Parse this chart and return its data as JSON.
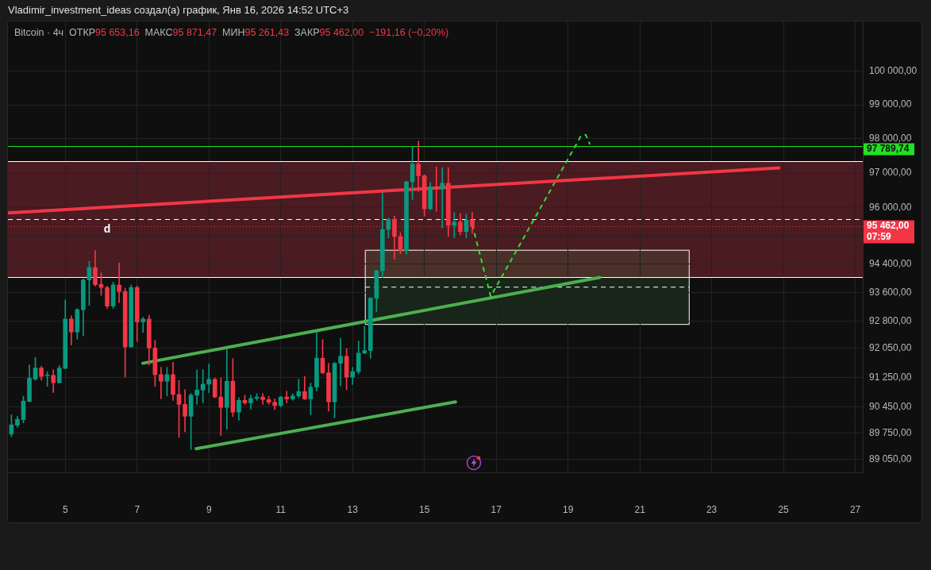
{
  "chart_data": {
    "type": "candlestick",
    "title": "Vladimir_investment_ideas создал(а) график, Янв 16, 2026 14:52 UTC+3",
    "subtitle": "Bitcoin · 4ч  ОТКР95 653,16  МАКС95 871,47  МИН95 261,43  ЗАКР95 462,00  −191,16 (−0,20%)",
    "x": [
      "2026-01-03T12:00",
      "2026-01-03T16:00",
      "2026-01-03T20:00",
      "2026-01-04T00:00",
      "2026-01-04T04:00",
      "2026-01-04T08:00",
      "2026-01-04T12:00",
      "2026-01-04T16:00",
      "2026-01-04T20:00",
      "2026-01-05T00:00",
      "2026-01-05T04:00",
      "2026-01-05T08:00",
      "2026-01-05T12:00",
      "2026-01-05T16:00",
      "2026-01-05T20:00",
      "2026-01-06T00:00",
      "2026-01-06T04:00",
      "2026-01-06T08:00",
      "2026-01-06T12:00",
      "2026-01-06T16:00",
      "2026-01-06T20:00",
      "2026-01-07T00:00",
      "2026-01-07T04:00",
      "2026-01-07T08:00",
      "2026-01-07T12:00",
      "2026-01-07T16:00",
      "2026-01-07T20:00",
      "2026-01-08T00:00",
      "2026-01-08T04:00",
      "2026-01-08T08:00",
      "2026-01-08T12:00",
      "2026-01-08T16:00",
      "2026-01-08T20:00",
      "2026-01-09T00:00",
      "2026-01-09T04:00",
      "2026-01-09T08:00",
      "2026-01-09T12:00",
      "2026-01-09T16:00",
      "2026-01-09T20:00",
      "2026-01-10T00:00",
      "2026-01-10T04:00",
      "2026-01-10T08:00",
      "2026-01-10T12:00",
      "2026-01-10T16:00",
      "2026-01-10T20:00",
      "2026-01-11T00:00",
      "2026-01-11T04:00",
      "2026-01-11T08:00",
      "2026-01-11T12:00",
      "2026-01-11T16:00",
      "2026-01-11T20:00",
      "2026-01-12T00:00",
      "2026-01-12T04:00",
      "2026-01-12T08:00",
      "2026-01-12T12:00",
      "2026-01-12T16:00",
      "2026-01-12T20:00",
      "2026-01-13T00:00",
      "2026-01-13T04:00",
      "2026-01-13T08:00",
      "2026-01-13T12:00",
      "2026-01-13T16:00",
      "2026-01-13T20:00",
      "2026-01-14T00:00",
      "2026-01-14T04:00",
      "2026-01-14T08:00",
      "2026-01-14T12:00",
      "2026-01-14T16:00",
      "2026-01-14T20:00",
      "2026-01-15T00:00",
      "2026-01-15T04:00",
      "2026-01-15T08:00",
      "2026-01-15T12:00",
      "2026-01-15T16:00",
      "2026-01-15T20:00",
      "2026-01-16T00:00",
      "2026-01-16T04:00",
      "2026-01-16T08:00"
    ],
    "ohlc": [
      [
        89720,
        90240,
        89650,
        89970
      ],
      [
        89960,
        90200,
        89900,
        90120
      ],
      [
        90110,
        90740,
        90020,
        90610
      ],
      [
        90600,
        91590,
        90590,
        91230
      ],
      [
        91210,
        91800,
        91170,
        91510
      ],
      [
        91510,
        91560,
        91180,
        91280
      ],
      [
        91300,
        91410,
        91010,
        91320
      ],
      [
        91310,
        91460,
        90840,
        91110
      ],
      [
        91110,
        91580,
        91100,
        91510
      ],
      [
        91500,
        93390,
        91490,
        92860
      ],
      [
        92860,
        92950,
        92140,
        92500
      ],
      [
        92500,
        93150,
        92300,
        93120
      ],
      [
        93120,
        93980,
        92400,
        93950
      ],
      [
        93950,
        94480,
        93240,
        94300
      ],
      [
        94300,
        94780,
        93780,
        93820
      ],
      [
        93830,
        94150,
        93520,
        93740
      ],
      [
        93740,
        93780,
        93150,
        93220
      ],
      [
        93220,
        93890,
        93150,
        93810
      ],
      [
        93810,
        94430,
        93320,
        93630
      ],
      [
        93630,
        93720,
        91260,
        92090
      ],
      [
        92090,
        93810,
        92080,
        93740
      ],
      [
        93740,
        93780,
        92240,
        92780
      ],
      [
        92780,
        92910,
        92490,
        92860
      ],
      [
        92860,
        92960,
        91590,
        92060
      ],
      [
        92060,
        92270,
        91010,
        91330
      ],
      [
        91330,
        91530,
        90670,
        91150
      ],
      [
        91150,
        91530,
        90750,
        91330
      ],
      [
        91330,
        91670,
        90630,
        90790
      ],
      [
        90790,
        91170,
        89630,
        90520
      ],
      [
        90520,
        90920,
        89780,
        90200
      ],
      [
        90200,
        90820,
        89310,
        90770
      ],
      [
        90770,
        91460,
        90520,
        90910
      ],
      [
        90910,
        91470,
        90560,
        91070
      ],
      [
        91070,
        91620,
        90840,
        91200
      ],
      [
        91200,
        91240,
        90700,
        90720
      ],
      [
        90720,
        91240,
        89680,
        90440
      ],
      [
        90440,
        92020,
        89850,
        91150
      ],
      [
        91150,
        91770,
        90190,
        90310
      ],
      [
        90310,
        90700,
        90090,
        90630
      ],
      [
        90630,
        90770,
        90520,
        90560
      ],
      [
        90560,
        90770,
        90390,
        90680
      ],
      [
        90680,
        90810,
        90630,
        90720
      ],
      [
        90720,
        90810,
        90520,
        90650
      ],
      [
        90650,
        90740,
        90520,
        90580
      ],
      [
        90580,
        90670,
        90380,
        90490
      ],
      [
        90490,
        90740,
        90450,
        90720
      ],
      [
        90720,
        90880,
        90560,
        90670
      ],
      [
        90670,
        90810,
        90630,
        90750
      ],
      [
        90750,
        91200,
        90700,
        90870
      ],
      [
        90870,
        91280,
        90650,
        90670
      ],
      [
        90670,
        91100,
        90240,
        90990
      ],
      [
        90990,
        92510,
        90880,
        91780
      ],
      [
        91780,
        92290,
        91350,
        91380
      ],
      [
        91380,
        91640,
        90340,
        90590
      ],
      [
        90590,
        91660,
        90160,
        91640
      ],
      [
        91640,
        92330,
        91020,
        91830
      ],
      [
        91830,
        92040,
        90920,
        91260
      ],
      [
        91260,
        91530,
        91060,
        91410
      ],
      [
        91410,
        92250,
        91350,
        91920
      ],
      [
        91920,
        92660,
        91900,
        91990
      ],
      [
        91990,
        93460,
        91780,
        93440
      ],
      [
        93440,
        94230,
        93070,
        94210
      ],
      [
        94210,
        96440,
        94020,
        95380
      ],
      [
        95380,
        95710,
        95140,
        95670
      ],
      [
        95670,
        95760,
        94540,
        95180
      ],
      [
        95180,
        95290,
        94690,
        94770
      ],
      [
        94770,
        96770,
        94680,
        96750
      ],
      [
        96750,
        97770,
        96240,
        97260
      ],
      [
        97260,
        97930,
        96470,
        96920
      ],
      [
        96920,
        96960,
        95760,
        95970
      ],
      [
        95970,
        96730,
        95940,
        96600
      ],
      [
        96600,
        97180,
        95900,
        96540
      ],
      [
        96540,
        97160,
        95430,
        96710
      ],
      [
        96710,
        97160,
        95180,
        95500
      ],
      [
        95500,
        95860,
        95140,
        95590
      ],
      [
        95590,
        95840,
        95230,
        95320
      ],
      [
        95320,
        95820,
        95140,
        95650
      ],
      [
        95653.16,
        95871.47,
        95261.43,
        95462
      ]
    ],
    "colors": [
      "#089981",
      "#089981",
      "#089981",
      "#089981",
      "#089981",
      "#f23645",
      "#089981",
      "#f23645",
      "#089981",
      "#089981",
      "#f23645",
      "#089981",
      "#089981",
      "#089981",
      "#f23645",
      "#f23645",
      "#f23645",
      "#089981",
      "#f23645",
      "#f23645",
      "#089981",
      "#f23645",
      "#089981",
      "#f23645",
      "#f23645",
      "#f23645",
      "#089981",
      "#f23645",
      "#f23645",
      "#f23645",
      "#089981",
      "#089981",
      "#089981",
      "#089981",
      "#f23645",
      "#f23645",
      "#089981",
      "#f23645",
      "#089981",
      "#f23645",
      "#089981",
      "#089981",
      "#f23645",
      "#f23645",
      "#f23645",
      "#089981",
      "#f23645",
      "#089981",
      "#089981",
      "#f23645",
      "#089981",
      "#089981",
      "#f23645",
      "#f23645",
      "#089981",
      "#089981",
      "#f23645",
      "#089981",
      "#089981",
      "#089981",
      "#089981",
      "#089981",
      "#089981",
      "#089981",
      "#f23645",
      "#f23645",
      "#089981",
      "#089981",
      "#f23645",
      "#f23645",
      "#089981",
      "#f23645",
      "#089981",
      "#f23645",
      "#089981",
      "#f23645",
      "#089981",
      "#f23645"
    ],
    "series": [
      {
        "type": "line",
        "x": [
          "2026-01-03T09:40",
          "2026-01-24T21:00"
        ],
        "values": [
          95850,
          97150
        ],
        "color": "#f23645"
      },
      {
        "type": "line",
        "x": [
          "2026-01-07T03:50",
          "2026-01-19T21:10"
        ],
        "values": [
          91640,
          94020
        ],
        "color": "#4caf50"
      },
      {
        "type": "line",
        "x": [
          "2026-01-08T15:30",
          "2026-01-15T20:50"
        ],
        "values": [
          89330,
          90590
        ],
        "color": "#4caf50"
      },
      {
        "type": "line",
        "x": [
          "2026-01-16T08:00",
          "2026-01-16T20:20",
          "2026-01-19T08:30",
          "2026-01-19T11:50",
          "2026-01-19T14:40"
        ],
        "values": [
          95520,
          93490,
          98070,
          98120,
          97840
        ],
        "color": "#33dd33",
        "line_style": "dashed"
      },
      {
        "type": "line",
        "x": [
          "2026-01-13T08:30",
          "2026-01-22T09:00"
        ],
        "values": [
          93750,
          93750
        ],
        "lower": [
          92710,
          92710
        ],
        "upper": [
          94790,
          94790
        ],
        "color": "#ffffff",
        "line_style": "dashed"
      }
    ],
    "bands": [
      {
        "axis": "y",
        "from": 94030,
        "to": 97350,
        "color": "#4a1b21"
      }
    ],
    "ref_lines": [
      {
        "axis": "y",
        "value": 97350,
        "color": "#ffffff"
      },
      {
        "axis": "y",
        "value": 94030,
        "color": "#ffffff"
      },
      {
        "axis": "y",
        "value": 95680,
        "color": "#ffffff",
        "line_style": "dashed"
      },
      {
        "axis": "y",
        "value": 97789.74,
        "label": "97 789,74",
        "color": "#22e022"
      },
      {
        "axis": "y",
        "value": 95462,
        "label": "95 462,00\n07:59",
        "color": "#f23645",
        "line_style": "dotted"
      }
    ],
    "annotations": [
      {
        "text": "d",
        "x": "2026-01-06T04:00",
        "y": 95370
      }
    ],
    "xlim": [
      "2026-01-03T09:40",
      "2026-01-27T05:00"
    ],
    "xticks": [
      {
        "value": "2026-01-05",
        "label": "5"
      },
      {
        "value": "2026-01-07",
        "label": "7"
      },
      {
        "value": "2026-01-09",
        "label": "9"
      },
      {
        "value": "2026-01-11",
        "label": "11"
      },
      {
        "value": "2026-01-13",
        "label": "13"
      },
      {
        "value": "2026-01-15",
        "label": "15"
      },
      {
        "value": "2026-01-17",
        "label": "17"
      },
      {
        "value": "2026-01-19",
        "label": "19"
      },
      {
        "value": "2026-01-21",
        "label": "21"
      },
      {
        "value": "2026-01-23",
        "label": "23"
      },
      {
        "value": "2026-01-25",
        "label": "25"
      },
      {
        "value": "2026-01-27",
        "label": "27"
      }
    ],
    "ylim": [
      88700,
      101500
    ],
    "yticks": [
      {
        "value": 89050,
        "label": "89 050,00"
      },
      {
        "value": 89750,
        "label": "89 750,00"
      },
      {
        "value": 90450,
        "label": "90 450,00"
      },
      {
        "value": 91250,
        "label": "91 250,00"
      },
      {
        "value": 92050,
        "label": "92 050,00"
      },
      {
        "value": 92800,
        "label": "92 800,00"
      },
      {
        "value": 93600,
        "label": "93 600,00"
      },
      {
        "value": 94400,
        "label": "94 400,00"
      },
      {
        "value": 95200,
        "label": null
      },
      {
        "value": 96000,
        "label": "96 000,00"
      },
      {
        "value": 97000,
        "label": "97 000,00"
      },
      {
        "value": 98000,
        "label": "98 000,00"
      },
      {
        "value": 99000,
        "label": "99 000,00"
      },
      {
        "value": 100000,
        "label": "100 000,00"
      }
    ],
    "log": true,
    "grid": true
  }
}
